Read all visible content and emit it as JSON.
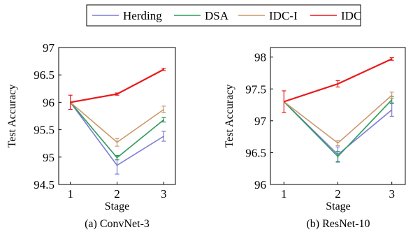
{
  "legend": [
    {
      "name": "Herding",
      "color": "#7b7bd6"
    },
    {
      "name": "DSA",
      "color": "#2e9a5c"
    },
    {
      "name": "IDC-I",
      "color": "#c99a6b"
    },
    {
      "name": "IDC",
      "color": "#e8191b"
    }
  ],
  "chart_data": [
    {
      "type": "line",
      "caption": "(a) ConvNet-3",
      "xlabel": "Stage",
      "ylabel": "Test Accuracy",
      "x": [
        1,
        2,
        3
      ],
      "xticks": [
        "1",
        "2",
        "3"
      ],
      "xlim": [
        0.75,
        3.25
      ],
      "ylim": [
        94.5,
        97
      ],
      "yticks": [
        94.5,
        95,
        95.5,
        96,
        96.5,
        97
      ],
      "ytick_labels": [
        "94.5",
        "95",
        "95.5",
        "96",
        "96.5",
        "97"
      ],
      "series": [
        {
          "name": "Herding",
          "values": [
            96.0,
            94.85,
            95.38
          ],
          "errors": [
            0,
            0.16,
            0.09
          ],
          "color": "#7b7bd6"
        },
        {
          "name": "DSA",
          "values": [
            96.0,
            94.99,
            95.68
          ],
          "errors": [
            0,
            0.04,
            0.04
          ],
          "color": "#2e9a5c"
        },
        {
          "name": "IDC-I",
          "values": [
            96.0,
            95.27,
            95.87
          ],
          "errors": [
            0,
            0.07,
            0.06
          ],
          "color": "#c99a6b"
        },
        {
          "name": "IDC",
          "values": [
            96.0,
            96.15,
            96.6
          ],
          "errors": [
            0.13,
            0.02,
            0.02
          ],
          "color": "#e8191b"
        }
      ]
    },
    {
      "type": "line",
      "caption": "(b) ResNet-10",
      "xlabel": "Stage",
      "ylabel": "Test Accuracy",
      "x": [
        1,
        2,
        3
      ],
      "xticks": [
        "1",
        "2",
        "3"
      ],
      "xlim": [
        0.75,
        3.25
      ],
      "ylim": [
        96,
        98.15
      ],
      "yticks": [
        96,
        96.5,
        97,
        97.5,
        98
      ],
      "ytick_labels": [
        "96",
        "96.5",
        "97",
        "97.5",
        "98"
      ],
      "series": [
        {
          "name": "Herding",
          "values": [
            97.3,
            96.47,
            97.17
          ],
          "errors": [
            0,
            0.12,
            0.1
          ],
          "color": "#7b7bd6"
        },
        {
          "name": "DSA",
          "values": [
            97.3,
            96.44,
            97.33
          ],
          "errors": [
            0,
            0.08,
            0.05
          ],
          "color": "#2e9a5c"
        },
        {
          "name": "IDC-I",
          "values": [
            97.3,
            96.65,
            97.4
          ],
          "errors": [
            0,
            0.04,
            0.05
          ],
          "color": "#c99a6b"
        },
        {
          "name": "IDC",
          "values": [
            97.3,
            97.58,
            97.97
          ],
          "errors": [
            0.17,
            0.05,
            0.02
          ],
          "color": "#e8191b"
        }
      ]
    }
  ]
}
